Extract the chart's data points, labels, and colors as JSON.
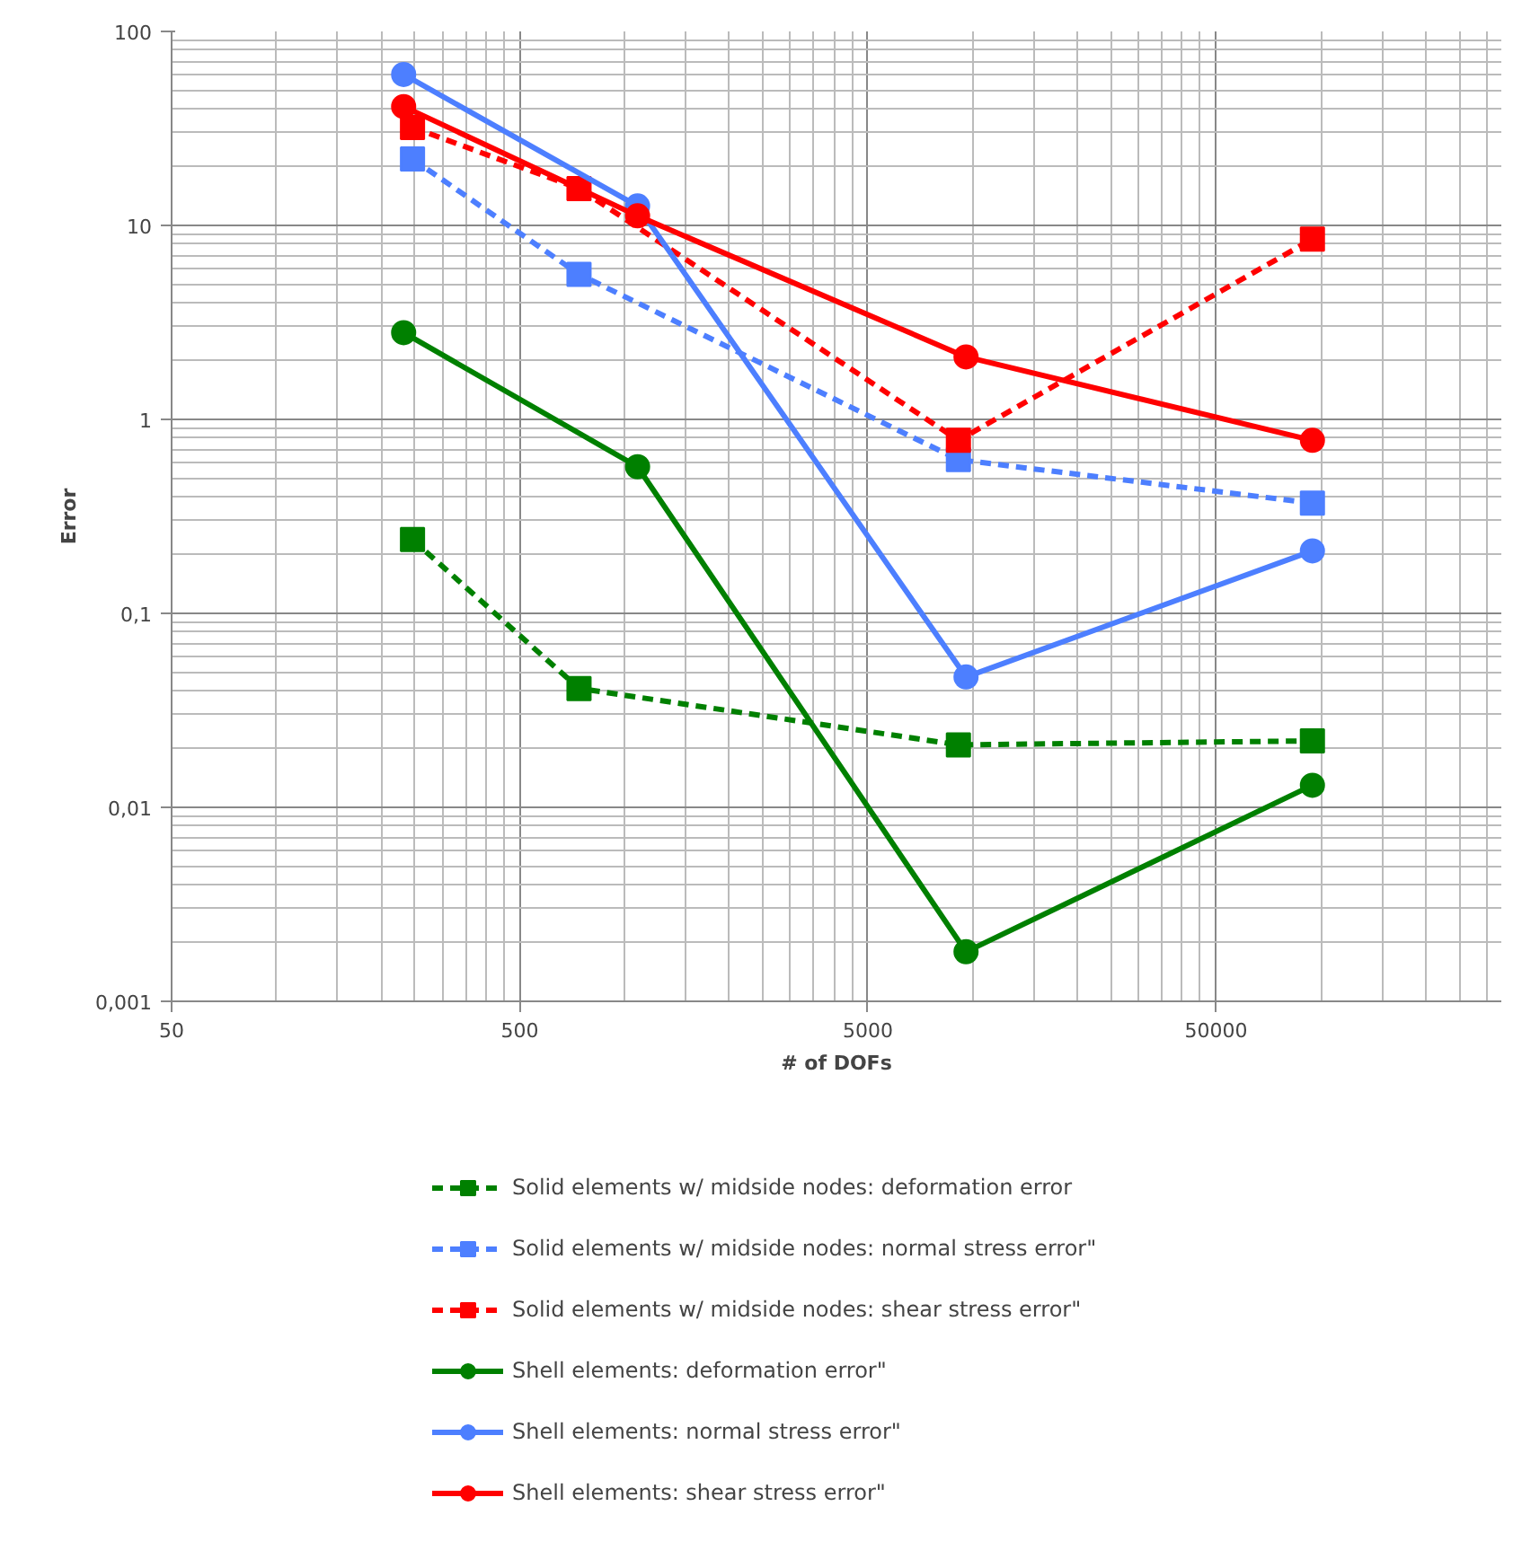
{
  "chart_data": {
    "type": "line",
    "xlabel": "# of DOFs",
    "ylabel": "Error",
    "log": "xy",
    "grid": true,
    "legend": "bottom",
    "xlim": [
      50,
      330000
    ],
    "xticks": [
      50,
      500,
      5000,
      50000
    ],
    "ylim": [
      0.001,
      100
    ],
    "yticks": [
      {
        "value": 0.001,
        "label": "0,001"
      },
      {
        "value": 0.01,
        "label": "0,01"
      },
      {
        "value": 0.1,
        "label": "0,1"
      },
      1,
      10,
      100
    ],
    "series": [
      {
        "name": "Solid elements w/ midside nodes: deformation error",
        "color": "#008000",
        "marker": "square",
        "line_style": "dashed",
        "x": [
          246,
          740,
          9100,
          94600
        ],
        "values": [
          0.24,
          0.041,
          0.021,
          0.022
        ]
      },
      {
        "name": "Solid elements w/ midside nodes: normal stress error\"",
        "color": "#4d7fff",
        "marker": "square",
        "line_style": "dashed",
        "x": [
          246,
          740,
          9100,
          94600
        ],
        "values": [
          22,
          5.6,
          0.62,
          0.37
        ]
      },
      {
        "name": "Solid elements w/ midside nodes: shear stress error\"",
        "color": "#ff0000",
        "marker": "square",
        "line_style": "dashed",
        "x": [
          246,
          740,
          9100,
          94600
        ],
        "values": [
          32,
          15.5,
          0.78,
          8.5
        ]
      },
      {
        "name": "Shell elements: deformation error\"",
        "color": "#008000",
        "marker": "circle",
        "line_style": "solid",
        "x": [
          232,
          1090,
          9570,
          94600
        ],
        "values": [
          2.8,
          0.57,
          0.0018,
          0.013
        ]
      },
      {
        "name": "Shell elements: normal stress error\"",
        "color": "#4d7fff",
        "marker": "circle",
        "line_style": "solid",
        "x": [
          232,
          1090,
          9570,
          94600
        ],
        "values": [
          60,
          12.6,
          0.047,
          0.21
        ]
      },
      {
        "name": "Shell elements: shear stress error\"",
        "color": "#ff0000",
        "marker": "circle",
        "line_style": "solid",
        "x": [
          232,
          1090,
          9570,
          94600
        ],
        "values": [
          41,
          11.2,
          2.1,
          0.78
        ]
      }
    ]
  }
}
